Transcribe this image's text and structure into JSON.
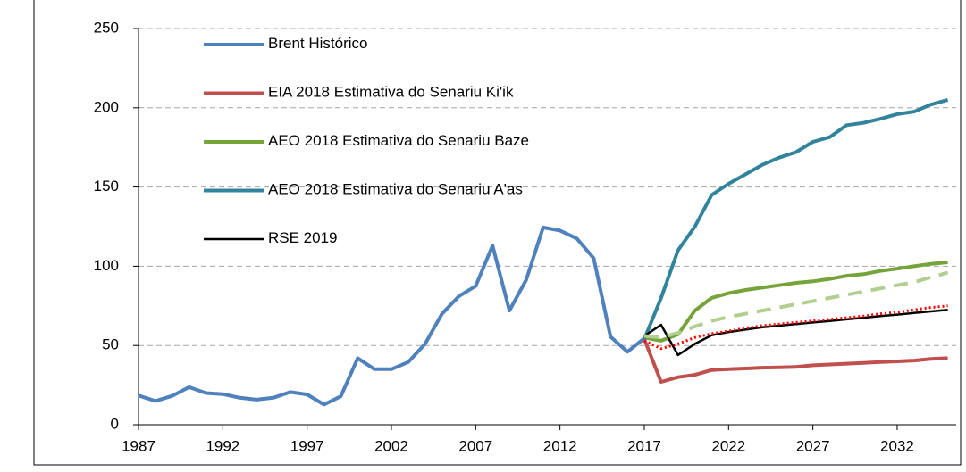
{
  "chart_data": {
    "type": "line",
    "xlim": [
      1987,
      2035.5
    ],
    "xticks": [
      1987,
      1992,
      1997,
      2002,
      2007,
      2012,
      2017,
      2022,
      2027,
      2032
    ],
    "ylim": [
      0,
      250
    ],
    "yticks": [
      0,
      50,
      100,
      150,
      200,
      250
    ],
    "grid": true,
    "series": [
      {
        "name": "Brent Histórico",
        "color": "#4f81bd",
        "style": "solid",
        "x": [
          1987,
          1988,
          1989,
          1990,
          1991,
          1992,
          1993,
          1994,
          1995,
          1996,
          1997,
          1998,
          1999,
          2000,
          2001,
          2002,
          2003,
          2004,
          2005,
          2006,
          2007,
          2008,
          2009,
          2010,
          2011,
          2012,
          2013,
          2014,
          2015,
          2016,
          2017
        ],
        "values": [
          18.4,
          15,
          18.2,
          23.7,
          20,
          19.3,
          17,
          15.8,
          17,
          20.6,
          19.1,
          12.7,
          17.9,
          42,
          35,
          35,
          39.5,
          51,
          70,
          81,
          87.5,
          113,
          72,
          91.5,
          124.5,
          122.5,
          117.5,
          105,
          55.5,
          46,
          54.5
        ]
      },
      {
        "name": "EIA 2018 Estimativa do Senariu Ki'ik",
        "color": "#c0504d",
        "style": "solid",
        "x": [
          2017,
          2018,
          2019,
          2020,
          2021,
          2022,
          2023,
          2024,
          2025,
          2026,
          2027,
          2028,
          2029,
          2030,
          2031,
          2032,
          2033,
          2034,
          2035
        ],
        "values": [
          54,
          27,
          30,
          31.5,
          34.5,
          35,
          35.5,
          36,
          36.2,
          36.5,
          37.5,
          38,
          38.5,
          39,
          39.5,
          40,
          40.5,
          41.5,
          42
        ]
      },
      {
        "name": "AEO 2018 Estimativa do Senariu Baze",
        "color": "#77a33b",
        "style": "solid",
        "x": [
          2017,
          2018,
          2019,
          2020,
          2021,
          2022,
          2023,
          2024,
          2025,
          2026,
          2027,
          2028,
          2029,
          2030,
          2031,
          2032,
          2033,
          2034,
          2035
        ],
        "values": [
          55,
          53,
          57,
          72,
          80,
          83,
          85,
          86.5,
          88,
          89.5,
          90.5,
          92,
          94,
          95,
          97,
          98.5,
          100,
          101.5,
          102.5
        ]
      },
      {
        "name": "AEO 2018 Estimativa do Senariu A'as",
        "color": "#31849b",
        "style": "solid",
        "x": [
          2017,
          2018,
          2019,
          2020,
          2021,
          2022,
          2023,
          2024,
          2025,
          2026,
          2027,
          2028,
          2029,
          2030,
          2031,
          2032,
          2033,
          2034,
          2035
        ],
        "values": [
          54,
          80,
          110,
          125,
          145,
          152,
          158,
          164,
          168.5,
          172,
          178.5,
          181.5,
          189,
          190.5,
          193,
          196,
          197.5,
          202,
          205
        ]
      },
      {
        "name": "RSE 2019",
        "color": "#000000",
        "style": "thin",
        "x": [
          2017,
          2018,
          2019,
          2020,
          2021,
          2022,
          2023,
          2024,
          2025,
          2026,
          2027,
          2028,
          2029,
          2030,
          2031,
          2032,
          2033,
          2034,
          2035
        ],
        "values": [
          56,
          63,
          44,
          51,
          56.5,
          58.5,
          60,
          61.5,
          62.5,
          63.5,
          64.5,
          65.5,
          66.5,
          67.5,
          68.5,
          69.5,
          70.5,
          71.5,
          72.5
        ]
      },
      {
        "color": "#b3cf8f",
        "style": "dashed",
        "x": [
          2017,
          2018,
          2019,
          2020,
          2021,
          2022,
          2023,
          2024,
          2025,
          2026,
          2027,
          2028,
          2029,
          2030,
          2031,
          2032,
          2033,
          2034,
          2035
        ],
        "values": [
          56,
          55,
          58,
          62,
          65.5,
          68,
          70,
          72,
          74,
          76,
          78,
          80,
          82,
          84,
          86,
          88,
          90,
          93,
          96
        ]
      },
      {
        "color": "#ff0000",
        "style": "dotted",
        "x": [
          2017,
          2018,
          2019,
          2020,
          2021,
          2022,
          2023,
          2024,
          2025,
          2026,
          2027,
          2028,
          2029,
          2030,
          2031,
          2032,
          2033,
          2034,
          2035
        ],
        "values": [
          53,
          48,
          51,
          55,
          57.5,
          59,
          61,
          62.5,
          63.5,
          64.5,
          65.5,
          66.5,
          67.5,
          68.5,
          70,
          71,
          72.5,
          74,
          75
        ]
      }
    ]
  }
}
